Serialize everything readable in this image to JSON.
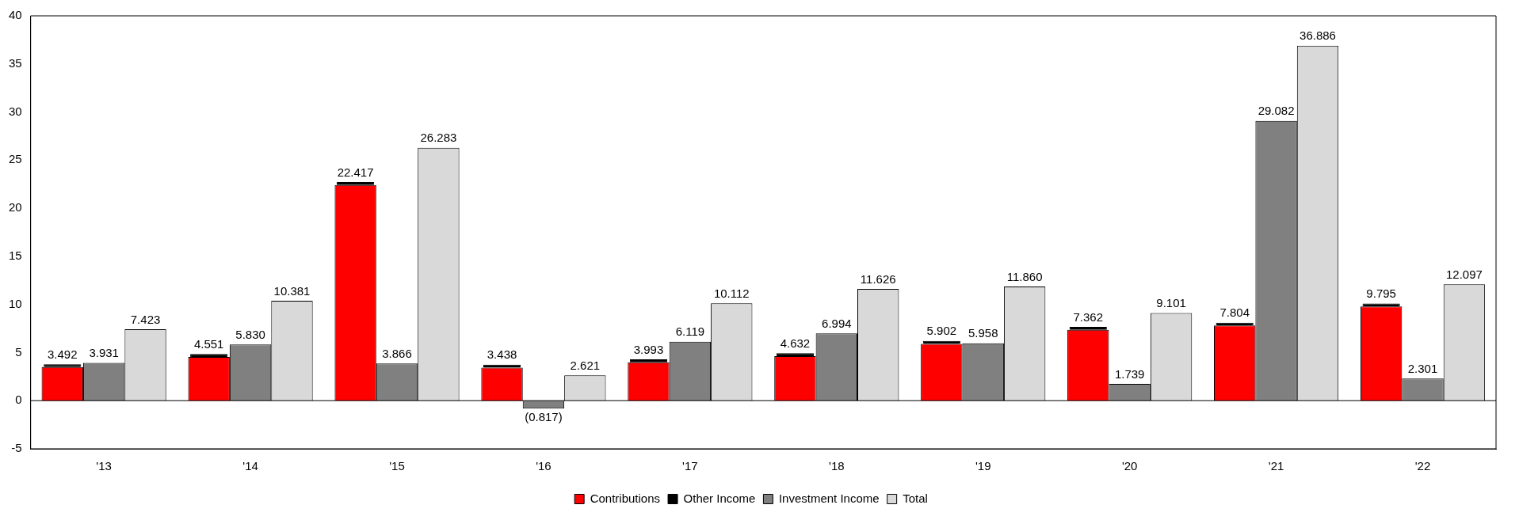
{
  "chart_data": {
    "type": "bar",
    "categories": [
      "'13",
      "'14",
      "'15",
      "'16",
      "'17",
      "'18",
      "'19",
      "'20",
      "'21",
      "'22"
    ],
    "series": [
      {
        "name": "Contributions",
        "color": "#ff0000",
        "values": [
          3.492,
          4.551,
          22.417,
          3.438,
          3.993,
          4.632,
          5.902,
          7.362,
          7.804,
          9.795
        ],
        "value_labels": [
          "3.492",
          "4.551",
          "22.417",
          "3.438",
          "3.993",
          "4.632",
          "5.902",
          "7.362",
          "7.804",
          "9.795"
        ]
      },
      {
        "name": "Other Income",
        "color": "#000000",
        "base": [
          3.492,
          4.551,
          22.417,
          3.438,
          3.993,
          4.632,
          5.902,
          7.362,
          7.804,
          9.795
        ],
        "values": [
          0.3,
          0.3,
          0.3,
          0.3,
          0.3,
          0.3,
          0.3,
          0.3,
          0.3,
          0.3
        ]
      },
      {
        "name": "Investment Income",
        "color": "#808080",
        "values": [
          3.931,
          5.83,
          3.866,
          -0.817,
          6.119,
          6.994,
          5.958,
          1.739,
          29.082,
          2.301
        ],
        "value_labels": [
          "3.931",
          "5.830",
          "3.866",
          "(0.817)",
          "6.119",
          "6.994",
          "5.958",
          "1.739",
          "29.082",
          "2.301"
        ]
      },
      {
        "name": "Total",
        "color": "#d9d9d9",
        "values": [
          7.423,
          10.381,
          26.283,
          2.621,
          10.112,
          11.626,
          11.86,
          9.101,
          36.886,
          12.097
        ],
        "value_labels": [
          "7.423",
          "10.381",
          "26.283",
          "2.621",
          "10.112",
          "11.626",
          "11.860",
          "9.101",
          "36.886",
          "12.097"
        ]
      }
    ],
    "ylim": [
      -5,
      40
    ],
    "yticks": [
      -5,
      0,
      5,
      10,
      15,
      20,
      25,
      30,
      35,
      40
    ],
    "ref_lines": [
      {
        "axis": "y",
        "value": 0
      }
    ],
    "legend": "bottom"
  }
}
